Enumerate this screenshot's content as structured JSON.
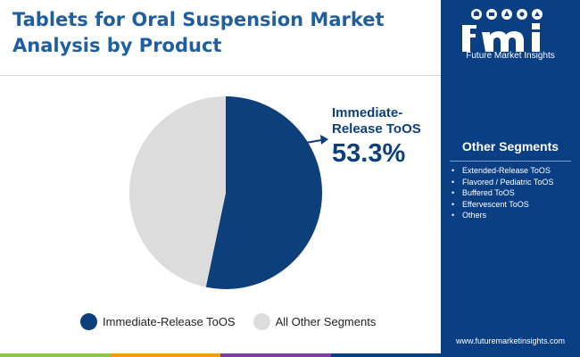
{
  "header": {
    "title_line1": "Tablets for Oral Suspension Market",
    "title_line2": "Analysis by Product"
  },
  "brand": {
    "logo_text": "Future Market Insights",
    "url": "www.futuremarketinsights.com"
  },
  "sidebar": {
    "title": "Other Segments",
    "items": [
      "Extended-Release ToOS",
      "Flavored / Pediatric ToOS",
      "Buffered ToOS",
      "Effervescent ToOS",
      "Others"
    ]
  },
  "callout": {
    "label_line1": "Immediate-",
    "label_line2": "Release ToOS",
    "value": "53.3%"
  },
  "chart_data": {
    "type": "pie",
    "title": "Tablets for Oral Suspension Market Analysis by Product",
    "slices": [
      {
        "label": "Immediate-Release ToOS",
        "value": 53.3,
        "color": "#0d3f7a"
      },
      {
        "label": "All Other Segments",
        "value": 46.7,
        "color": "#dcdcdc"
      }
    ],
    "start_angle_deg": 0,
    "direction": "clockwise",
    "legend_position": "bottom"
  },
  "colors": {
    "brand_blue": "#0a3f84",
    "title_blue": "#1f5f9f",
    "bottom_bar": [
      "#8ec63f",
      "#f39c12",
      "#7b3fa0",
      "#0a3f84"
    ]
  }
}
